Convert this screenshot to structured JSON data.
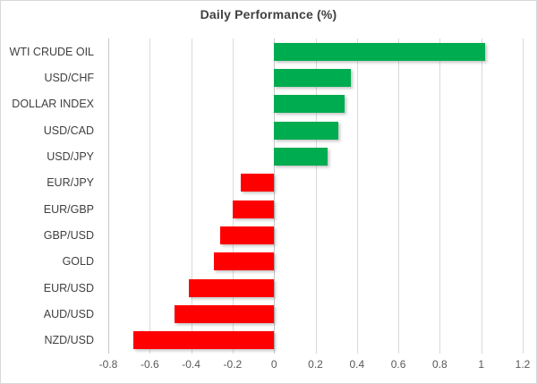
{
  "chart_data": {
    "type": "bar",
    "orientation": "horizontal",
    "title": "Daily Performance (%)",
    "categories": [
      "WTI CRUDE OIL",
      "USD/CHF",
      "DOLLAR INDEX",
      "USD/CAD",
      "USD/JPY",
      "EUR/JPY",
      "EUR/GBP",
      "GBP/USD",
      "GOLD",
      "EUR/USD",
      "AUD/USD",
      "NZD/USD"
    ],
    "values": [
      1.02,
      0.37,
      0.34,
      0.31,
      0.26,
      -0.16,
      -0.2,
      -0.26,
      -0.29,
      -0.41,
      -0.48,
      -0.68
    ],
    "xlabel": "",
    "ylabel": "",
    "xlim": [
      -0.8,
      1.2
    ],
    "xticks": [
      "-0.8",
      "-0.6",
      "-0.4",
      "-0.2",
      "0",
      "0.2",
      "0.4",
      "0.6",
      "0.8",
      "1",
      "1.2"
    ],
    "xtick_values": [
      -0.8,
      -0.6,
      -0.4,
      -0.2,
      0,
      0.2,
      0.4,
      0.6,
      0.8,
      1,
      1.2
    ],
    "grid": true,
    "legend": false,
    "colors": {
      "positive": "#00AC50",
      "negative": "#FF0000",
      "gridline": "#D9D9D9",
      "title_text": "#404040",
      "category_text": "#404040",
      "tick_text": "#595959"
    }
  }
}
